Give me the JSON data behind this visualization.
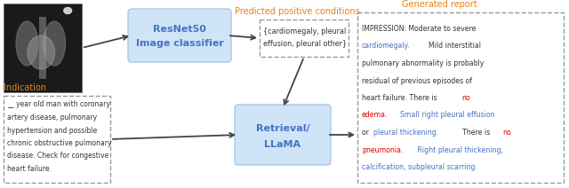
{
  "bg_color": "#ffffff",
  "orange_color": "#E8821A",
  "blue_box_color": "#D0E4F7",
  "blue_box_edge": "#A8C8E8",
  "blue_text_color": "#4472C4",
  "red_text_color": "#DD0000",
  "dark_gray": "#333333",
  "dash_box_color": "#999999",
  "resnet_label1": "ResNet50",
  "resnet_label2": "Image classifier",
  "retrieval_label1": "Retrieval/",
  "retrieval_label2": "LLaMA",
  "predicted_label": "Predicted positive conditions",
  "generated_label": "Generated report",
  "indication_label": "Indication",
  "predicted_text_l1": "{cardiomegaly, pleural",
  "predicted_text_l2": "effusion, pleural other}",
  "indication_lines": [
    "__ year old man with coronary",
    "artery disease, pulmonary",
    "hypertension and possible",
    "chronic obstructive pulmonary",
    "disease. Check for congestive",
    "heart failure."
  ]
}
